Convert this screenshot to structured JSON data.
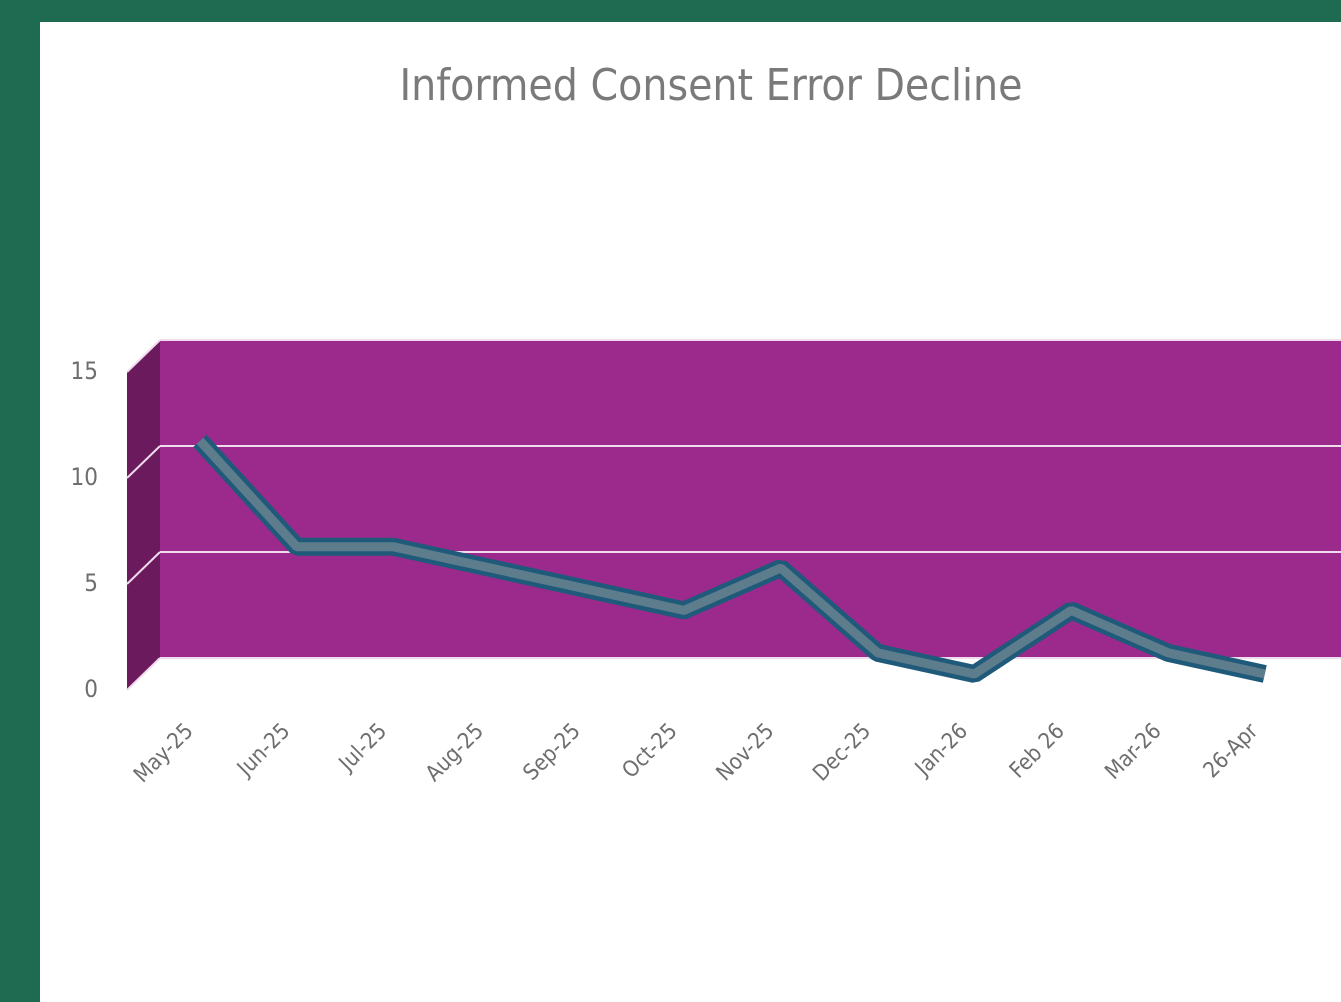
{
  "chart_data": {
    "type": "line",
    "title": "Informed Consent Error Decline",
    "categories": [
      "May-25",
      "Jun-25",
      "Jul-25",
      "Aug-25",
      "Sep-25",
      "Oct-25",
      "Nov-25",
      "Dec-25",
      "Jan-26",
      "Feb 26",
      "Mar-26",
      "26-Apr"
    ],
    "values": [
      11,
      6,
      6,
      5,
      4,
      3,
      5,
      1,
      0,
      3,
      1,
      0
    ],
    "color": "#5e7d8c",
    "wall_color": "#9c2a8c",
    "ylim": [
      0,
      15
    ],
    "yticks": [
      0,
      5,
      10,
      15
    ],
    "grid": true
  }
}
